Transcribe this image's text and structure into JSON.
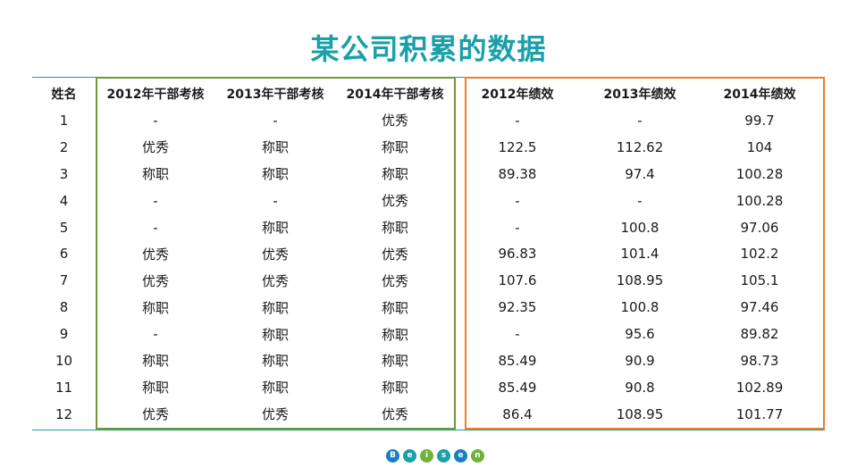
{
  "title": "某公司积累的数据",
  "headers": [
    "姓名",
    "2012年干部考核",
    "2013年干部考核",
    "2014年干部考核",
    "2012年绩效",
    "2013年绩效",
    "2014年绩效"
  ],
  "rows": [
    [
      "1",
      "-",
      "-",
      "优秀",
      "-",
      "-",
      "99.7"
    ],
    [
      "2",
      "优秀",
      "称职",
      "称职",
      "122.5",
      "112.62",
      "104"
    ],
    [
      "3",
      "称职",
      "称职",
      "称职",
      "89.38",
      "97.4",
      "100.28"
    ],
    [
      "4",
      "-",
      "-",
      "优秀",
      "-",
      "-",
      "100.28"
    ],
    [
      "5",
      "-",
      "称职",
      "称职",
      "-",
      "100.8",
      "97.06"
    ],
    [
      "6",
      "优秀",
      "优秀",
      "优秀",
      "96.83",
      "101.4",
      "102.2"
    ],
    [
      "7",
      "优秀",
      "优秀",
      "优秀",
      "107.6",
      "108.95",
      "105.1"
    ],
    [
      "8",
      "称职",
      "称职",
      "称职",
      "92.35",
      "100.8",
      "97.46"
    ],
    [
      "9",
      "-",
      "称职",
      "称职",
      "-",
      "95.6",
      "89.82"
    ],
    [
      "10",
      "称职",
      "称职",
      "称职",
      "85.49",
      "90.9",
      "98.73"
    ],
    [
      "11",
      "称职",
      "称职",
      "称职",
      "85.49",
      "90.8",
      "102.89"
    ],
    [
      "12",
      "优秀",
      "优秀",
      "优秀",
      "86.4",
      "108.95",
      "101.77"
    ]
  ],
  "logo": {
    "letters": [
      "B",
      "e",
      "i",
      "s",
      "e",
      "n"
    ],
    "colors": [
      "#1a7fc1",
      "#1aa0a8",
      "#6fb33a",
      "#1aa0a8",
      "#1a7fc1",
      "#6fb33a"
    ]
  }
}
